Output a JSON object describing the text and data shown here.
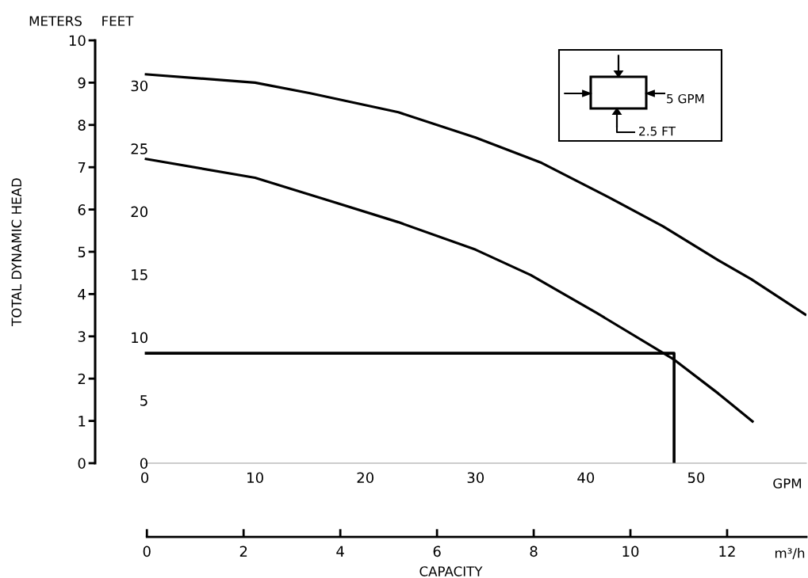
{
  "chart_data": {
    "type": "line",
    "xlabel": "CAPACITY",
    "ylabel": "TOTAL DYNAMIC HEAD",
    "xlim": [
      -4.5,
      60
    ],
    "xticks": [
      0,
      10,
      20,
      30,
      40,
      50
    ],
    "x2lim": [
      -1.07,
      13.64
    ],
    "x2ticks": [
      0,
      2,
      4,
      6,
      8,
      10,
      12
    ],
    "ylim": [
      0,
      10
    ],
    "yticks": [
      0,
      1,
      2,
      3,
      4,
      5,
      6,
      7,
      8,
      9,
      10
    ],
    "y2lim": [
      0,
      33.6
    ],
    "y2ticks": [
      0,
      5,
      10,
      15,
      20,
      25,
      30
    ],
    "grid": false,
    "marker": "none",
    "line_style": "solid",
    "series": [
      {
        "color": "#000000",
        "x": [
          0,
          10,
          15,
          23,
          30,
          36,
          42,
          47,
          52,
          55,
          60
        ],
        "values": [
          9.2,
          9.0,
          8.75,
          8.3,
          7.7,
          7.1,
          6.3,
          5.6,
          4.8,
          4.35,
          3.5
        ]
      },
      {
        "color": "#000000",
        "x": [
          0,
          10,
          15,
          23,
          30,
          35,
          41,
          48,
          52,
          55.2
        ],
        "values": [
          7.2,
          6.75,
          6.35,
          5.7,
          5.05,
          4.45,
          3.55,
          2.45,
          1.65,
          0.97
        ]
      },
      {
        "color": "#000000",
        "x": [
          0,
          48,
          48
        ],
        "values": [
          2.6,
          2.6,
          0
        ]
      }
    ],
    "annotations": [
      "METERS",
      "FEET",
      "GPM",
      "m³/h",
      "5 GPM",
      "2.5 FT"
    ]
  }
}
